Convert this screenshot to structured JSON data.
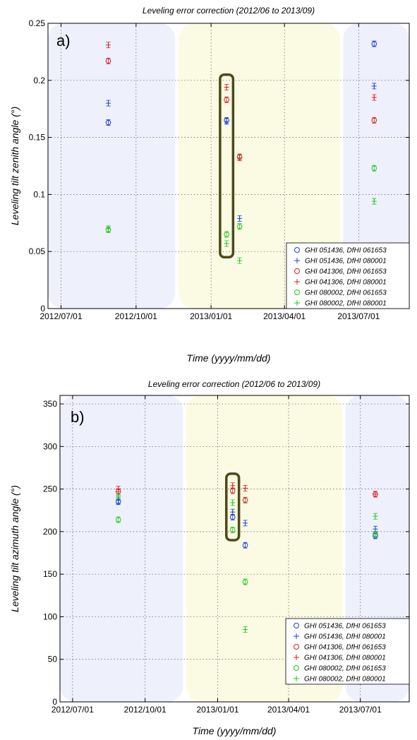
{
  "colors": {
    "blue": "#1f3fd6",
    "red": "#d62020",
    "green": "#1ec81e",
    "season_blue": "#eef0fb",
    "season_yellow": "#fbfbe4",
    "highlight_box": "#4a4a1a"
  },
  "legend_entries": [
    {
      "label": "GHI 051436, DfHI 061653",
      "marker": "o",
      "color": "#1f3fd6"
    },
    {
      "label": "GHI 051436, DfHI 080001",
      "marker": "+",
      "color": "#1f3fd6"
    },
    {
      "label": "GHI 041306, DfHI 061653",
      "marker": "o",
      "color": "#d62020"
    },
    {
      "label": "GHI 041306, DfHI 080001",
      "marker": "+",
      "color": "#d62020"
    },
    {
      "label": "GHI 080002, DfHI 061653",
      "marker": "o",
      "color": "#1ec81e"
    },
    {
      "label": "GHI 080002, DfHI 080001",
      "marker": "+",
      "color": "#1ec81e"
    }
  ],
  "chart_data": [
    {
      "type": "scatter",
      "panel_label": "a)",
      "title": "Leveling error correction (2012/06 to 2013/09)",
      "xlabel": "Time (yyyy/mm/dd)",
      "ylabel": "Leveling tilt zenith angle (°)",
      "x_ticks": [
        "2012/07/01",
        "2012/10/01",
        "2013/01/01",
        "2013/04/01",
        "2013/07/01"
      ],
      "y_ticks": [
        "0",
        "0.05",
        "0.1",
        "0.15",
        "0.2",
        "0.25"
      ],
      "ylim": [
        0,
        0.25
      ],
      "xlim": [
        "2012/06/15",
        "2013/09/01"
      ],
      "grid": true,
      "legend_position": "lower-right",
      "seasons": [
        "winter",
        "summer",
        "winter"
      ],
      "series": [
        {
          "name": "GHI 051436, DfHI 061653",
          "points": [
            {
              "x": "2012/08/28",
              "y": 0.163
            },
            {
              "x": "2013/01/20",
              "y": 0.165
            },
            {
              "x": "2013/07/20",
              "y": 0.232
            }
          ]
        },
        {
          "name": "GHI 051436, DfHI 080001",
          "points": [
            {
              "x": "2012/08/28",
              "y": 0.18
            },
            {
              "x": "2013/01/20",
              "y": 0.164
            },
            {
              "x": "2013/02/05",
              "y": 0.079
            },
            {
              "x": "2013/07/20",
              "y": 0.195
            }
          ]
        },
        {
          "name": "GHI 041306, DfHI 061653",
          "points": [
            {
              "x": "2012/08/28",
              "y": 0.217
            },
            {
              "x": "2013/01/20",
              "y": 0.183
            },
            {
              "x": "2013/02/05",
              "y": 0.133
            },
            {
              "x": "2013/07/20",
              "y": 0.165
            }
          ]
        },
        {
          "name": "GHI 041306, DfHI 080001",
          "points": [
            {
              "x": "2012/08/28",
              "y": 0.231
            },
            {
              "x": "2013/01/20",
              "y": 0.194
            },
            {
              "x": "2013/02/05",
              "y": 0.132
            },
            {
              "x": "2013/07/20",
              "y": 0.185
            }
          ]
        },
        {
          "name": "GHI 080002, DfHI 061653",
          "points": [
            {
              "x": "2012/08/28",
              "y": 0.069
            },
            {
              "x": "2013/01/20",
              "y": 0.065
            },
            {
              "x": "2013/02/05",
              "y": 0.072
            },
            {
              "x": "2013/07/20",
              "y": 0.123
            }
          ]
        },
        {
          "name": "GHI 080002, DfHI 080001",
          "points": [
            {
              "x": "2012/08/28",
              "y": 0.07
            },
            {
              "x": "2013/01/20",
              "y": 0.057
            },
            {
              "x": "2013/02/05",
              "y": 0.042
            },
            {
              "x": "2013/07/20",
              "y": 0.094
            }
          ]
        }
      ],
      "highlight": {
        "x_from": "2013/01/12",
        "x_to": "2013/01/28",
        "y_from": 0.045,
        "y_to": 0.205
      }
    },
    {
      "type": "scatter",
      "panel_label": "b)",
      "title": "Leveling error correction (2012/06 to 2013/09)",
      "xlabel": "Time (yyyy/mm/dd)",
      "ylabel": "Leveling tilt azimuth angle (°)",
      "x_ticks": [
        "2012/07/01",
        "2012/10/01",
        "2013/01/01",
        "2013/04/01",
        "2013/07/01"
      ],
      "y_ticks": [
        "0",
        "50",
        "100",
        "150",
        "200",
        "250",
        "300",
        "350"
      ],
      "ylim": [
        0,
        360
      ],
      "xlim": [
        "2012/06/15",
        "2013/09/01"
      ],
      "grid": true,
      "legend_position": "lower-right",
      "seasons": [
        "winter",
        "summer",
        "winter"
      ],
      "series": [
        {
          "name": "GHI 051436, DfHI 061653",
          "points": [
            {
              "x": "2012/08/28",
              "y": 235
            },
            {
              "x": "2013/01/20",
              "y": 217
            },
            {
              "x": "2013/02/05",
              "y": 184
            },
            {
              "x": "2013/07/20",
              "y": 195
            }
          ]
        },
        {
          "name": "GHI 051436, DfHI 080001",
          "points": [
            {
              "x": "2012/08/28",
              "y": 237
            },
            {
              "x": "2013/01/20",
              "y": 223
            },
            {
              "x": "2013/02/05",
              "y": 210
            },
            {
              "x": "2013/07/20",
              "y": 203
            }
          ]
        },
        {
          "name": "GHI 041306, DfHI 061653",
          "points": [
            {
              "x": "2012/08/28",
              "y": 247
            },
            {
              "x": "2013/01/20",
              "y": 248
            },
            {
              "x": "2013/02/05",
              "y": 237
            },
            {
              "x": "2013/07/20",
              "y": 244
            }
          ]
        },
        {
          "name": "GHI 041306, DfHI 080001",
          "points": [
            {
              "x": "2012/08/28",
              "y": 250
            },
            {
              "x": "2013/01/20",
              "y": 254
            },
            {
              "x": "2013/02/05",
              "y": 251
            },
            {
              "x": "2013/07/20",
              "y": 244
            }
          ]
        },
        {
          "name": "GHI 080002, DfHI 061653",
          "points": [
            {
              "x": "2012/08/28",
              "y": 214
            },
            {
              "x": "2013/01/20",
              "y": 202
            },
            {
              "x": "2013/02/05",
              "y": 141
            },
            {
              "x": "2013/07/20",
              "y": 197
            }
          ]
        },
        {
          "name": "GHI 080002, DfHI 080001",
          "points": [
            {
              "x": "2012/08/28",
              "y": 242
            },
            {
              "x": "2013/01/20",
              "y": 234
            },
            {
              "x": "2013/02/05",
              "y": 85
            },
            {
              "x": "2013/07/20",
              "y": 218
            }
          ]
        }
      ],
      "highlight": {
        "x_from": "2013/01/12",
        "x_to": "2013/01/28",
        "y_from": 190,
        "y_to": 268
      }
    }
  ]
}
